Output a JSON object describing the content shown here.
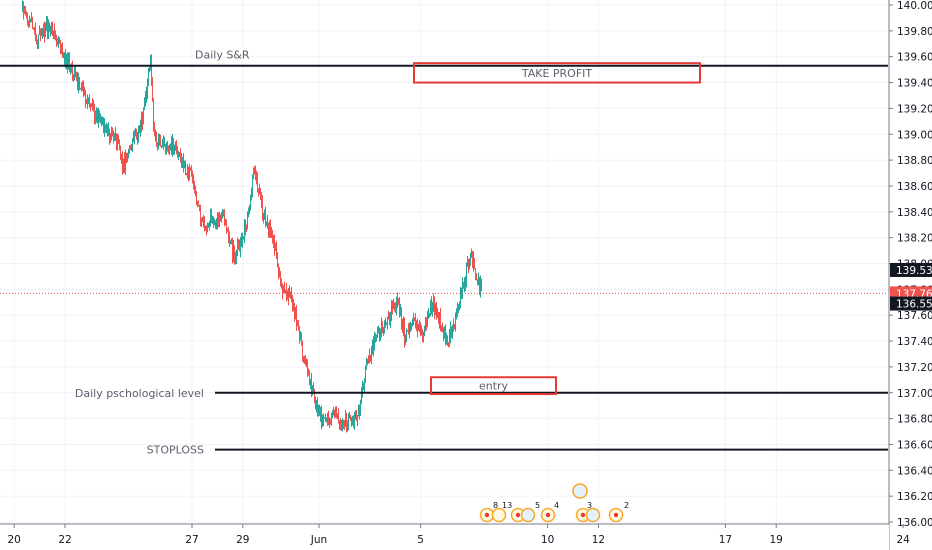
{
  "chart_data": {
    "type": "candlestick",
    "y_axis": {
      "min": 136.0,
      "max": 140.0,
      "ticks": [
        "140.000",
        "139.800",
        "139.600",
        "139.400",
        "139.200",
        "139.000",
        "138.800",
        "138.600",
        "138.400",
        "138.200",
        "138.000",
        "137.800",
        "137.600",
        "137.400",
        "137.200",
        "137.000",
        "136.800",
        "136.600",
        "136.400",
        "136.200",
        "136.000"
      ],
      "tick_values": [
        140.0,
        139.8,
        139.6,
        139.4,
        139.2,
        139.0,
        138.8,
        138.6,
        138.4,
        138.2,
        138.0,
        137.8,
        137.6,
        137.4,
        137.2,
        137.0,
        136.8,
        136.6,
        136.4,
        136.2,
        136.0
      ],
      "price_labels": [
        {
          "text": "139.538",
          "value": 137.95,
          "style": "dark"
        },
        {
          "text": "137.769",
          "value": 137.769,
          "style": "red"
        },
        {
          "text": "136.559",
          "value": 137.69,
          "style": "dark"
        }
      ]
    },
    "x_axis": {
      "labels": [
        "20",
        "22",
        "27",
        "29",
        "Jun",
        "5",
        "10",
        "12",
        "17",
        "19",
        "24",
        "26"
      ],
      "label_days": [
        -11,
        -9,
        -4,
        -2,
        1,
        5,
        10,
        12,
        17,
        19,
        24,
        26
      ]
    },
    "grid": true,
    "current_price": 137.769,
    "horizontal_lines": [
      {
        "name": "Daily S&R",
        "price": 139.53
      },
      {
        "name": "Daily pschological level",
        "price": 137.0
      },
      {
        "name": "STOPLOSS",
        "price": 136.56
      }
    ],
    "boxes": [
      {
        "label": "TAKE  PROFIT",
        "price_top": 139.55,
        "price_bottom": 139.4,
        "from_day": 5,
        "to_day": 19
      },
      {
        "label": "entry",
        "price_top": 137.12,
        "price_bottom": 136.99,
        "from_day": 8,
        "to_day": 13
      }
    ],
    "event_badges": [
      "8",
      "13",
      "5",
      "4",
      "3",
      "2"
    ],
    "colors": {
      "up": "#26a69a",
      "down": "#ef5350",
      "box": "#e53935",
      "price_line": "#ef5350",
      "hline": "#131722"
    }
  }
}
